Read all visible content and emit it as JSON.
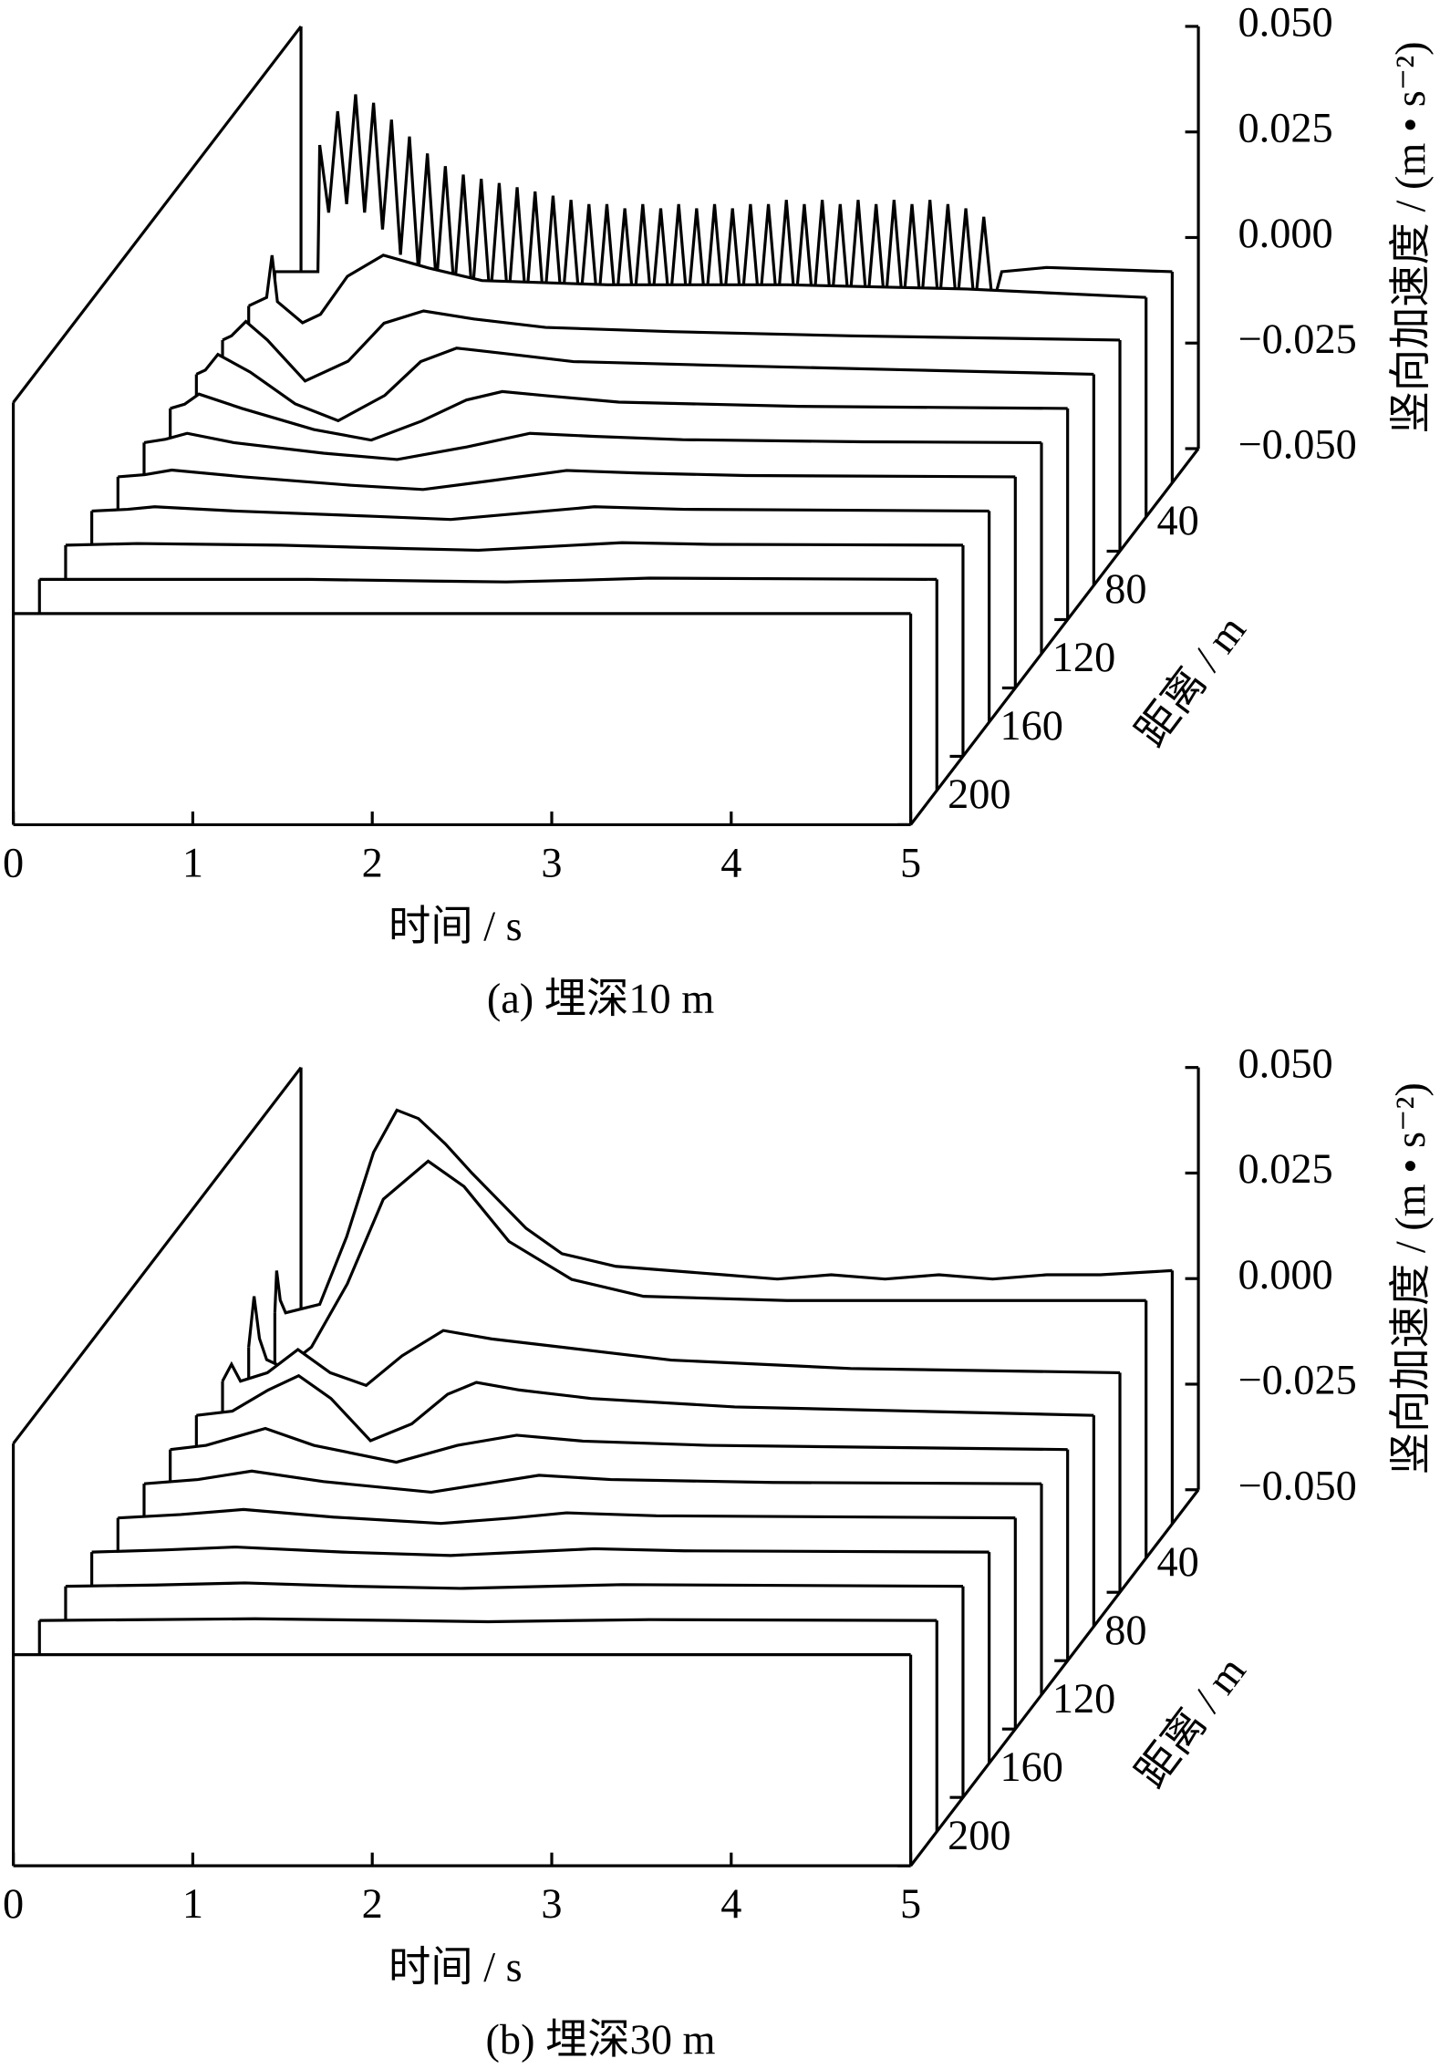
{
  "chart_data": [
    {
      "type": "waterfall",
      "caption": "(a) 埋深10 m",
      "x_label": "时间 / s",
      "y_label": "竖向加速度 / (m • s⁻²)",
      "z_label": "距离 / m",
      "color": "#000000",
      "xlim": [
        0,
        5
      ],
      "xticks": [
        0,
        1,
        2,
        3,
        4,
        5
      ],
      "ylim": [
        -0.05,
        0.05
      ],
      "yticks": [
        {
          "value": -0.05,
          "label": "−0.050"
        },
        {
          "value": -0.025,
          "label": "−0.025"
        },
        {
          "value": 0,
          "label": "0.000"
        },
        {
          "value": 0.025,
          "label": "0.025"
        },
        {
          "value": 0.05,
          "label": "0.050"
        }
      ],
      "zlim": [
        -20,
        200
      ],
      "zticks": [
        40,
        80,
        120,
        160,
        200
      ],
      "series": [
        {
          "z": 0,
          "x": [
            0,
            0.2,
            0.24,
            0.25,
            0.3,
            0.35,
            0.4,
            0.45,
            0.5,
            0.55,
            0.6,
            0.65,
            0.7,
            0.75,
            0.8,
            0.85,
            0.9,
            0.95,
            1.0,
            1.05,
            1.1,
            1.15,
            1.2,
            1.25,
            1.3,
            1.35,
            1.4,
            1.45,
            1.5,
            1.55,
            1.6,
            1.65,
            1.7,
            1.75,
            1.8,
            1.85,
            1.9,
            1.95,
            2.0,
            2.05,
            2.1,
            2.15,
            2.2,
            2.25,
            2.3,
            2.35,
            2.4,
            2.45,
            2.5,
            2.55,
            2.6,
            2.65,
            2.7,
            2.75,
            2.8,
            2.85,
            2.9,
            2.95,
            3.0,
            3.05,
            3.1,
            3.15,
            3.2,
            3.25,
            3.3,
            3.35,
            3.4,
            3.45,
            3.5,
            3.55,
            3.6,
            3.65,
            3.7,
            3.75,
            3.8,
            3.85,
            3.9,
            3.95,
            4.0,
            4.05,
            4.3,
            5.0
          ],
          "values": [
            0,
            0,
            0,
            0.03,
            0.014,
            0.038,
            0.016,
            0.042,
            0.014,
            0.04,
            0.01,
            0.036,
            0.004,
            0.032,
            0,
            0.028,
            -0.003,
            0.025,
            -0.005,
            0.023,
            -0.006,
            0.022,
            -0.007,
            0.021,
            -0.008,
            0.02,
            -0.008,
            0.019,
            -0.009,
            0.018,
            -0.009,
            0.017,
            -0.009,
            0.016,
            -0.009,
            0.016,
            -0.009,
            0.015,
            -0.009,
            0.016,
            -0.009,
            0.015,
            -0.009,
            0.016,
            -0.009,
            0.015,
            -0.009,
            0.016,
            -0.009,
            0.015,
            -0.009,
            0.016,
            -0.009,
            0.016,
            -0.009,
            0.017,
            -0.009,
            0.016,
            -0.009,
            0.017,
            -0.009,
            0.016,
            -0.009,
            0.017,
            -0.009,
            0.016,
            -0.009,
            0.017,
            -0.009,
            0.016,
            -0.009,
            0.017,
            -0.009,
            0.016,
            -0.009,
            0.015,
            -0.009,
            0.013,
            -0.008,
            0,
            0.001,
            0
          ]
        },
        {
          "z": 20,
          "x": [
            0,
            0.1,
            0.13,
            0.16,
            0.3,
            0.4,
            0.55,
            0.75,
            1.0,
            1.3,
            2.0,
            3.0,
            4.0,
            5.0
          ],
          "values": [
            0,
            0.002,
            0.012,
            0.001,
            -0.004,
            -0.002,
            0.007,
            0.012,
            0.009,
            0.006,
            0.005,
            0.005,
            0.004,
            0.002
          ]
        },
        {
          "z": 40,
          "x": [
            0,
            0.05,
            0.13,
            0.25,
            0.46,
            0.7,
            0.9,
            1.12,
            1.4,
            1.8,
            2.5,
            3.5,
            5.0
          ],
          "values": [
            0,
            0.001,
            0.0044,
            0,
            -0.0097,
            -0.005,
            0.004,
            0.0069,
            0.005,
            0.003,
            0.002,
            0.001,
            0
          ]
        },
        {
          "z": 60,
          "x": [
            0,
            0.05,
            0.12,
            0.3,
            0.55,
            0.79,
            1.05,
            1.25,
            1.45,
            1.7,
            2.1,
            3,
            4,
            5
          ],
          "values": [
            0,
            0.001,
            0.0047,
            0.0005,
            -0.007,
            -0.011,
            -0.005,
            0.003,
            0.0062,
            0.005,
            0.003,
            0.002,
            0.001,
            0
          ]
        },
        {
          "z": 80,
          "x": [
            0,
            0.08,
            0.16,
            0.4,
            0.8,
            1.12,
            1.4,
            1.65,
            1.85,
            2.1,
            2.5,
            3.5,
            5
          ],
          "values": [
            0,
            0.001,
            0.0034,
            0,
            -0.005,
            -0.0075,
            -0.003,
            0.002,
            0.004,
            0.003,
            0.0015,
            0.0005,
            0
          ]
        },
        {
          "z": 100,
          "x": [
            0,
            0.12,
            0.24,
            0.5,
            1.0,
            1.41,
            1.8,
            2.15,
            2.5,
            3.0,
            4.0,
            5.0
          ],
          "values": [
            0,
            0.0008,
            0.0022,
            0,
            -0.0025,
            -0.004,
            -0.001,
            0.0022,
            0.0015,
            0.0007,
            0.0002,
            0
          ]
        },
        {
          "z": 120,
          "x": [
            0,
            0.15,
            0.3,
            0.7,
            1.3,
            1.7,
            2.1,
            2.5,
            2.9,
            3.5,
            5
          ],
          "values": [
            0,
            0.0005,
            0.0016,
            0,
            -0.002,
            -0.003,
            -0.0008,
            0.0015,
            0.0009,
            0.0003,
            0
          ]
        },
        {
          "z": 140,
          "x": [
            0,
            0.2,
            0.35,
            0.8,
            1.6,
            2.0,
            2.4,
            2.8,
            3.3,
            5
          ],
          "values": [
            0,
            0.0004,
            0.001,
            0,
            -0.0013,
            -0.002,
            -0.0005,
            0.001,
            0.0004,
            0
          ]
        },
        {
          "z": 160,
          "x": [
            0,
            0.4,
            1.2,
            1.9,
            2.3,
            2.7,
            3.1,
            3.6,
            5
          ],
          "values": [
            0,
            0.0004,
            0,
            -0.0008,
            -0.0012,
            -0.0003,
            0.0006,
            0.0002,
            0
          ]
        },
        {
          "z": 180,
          "x": [
            0,
            1.5,
            2.2,
            2.6,
            3.0,
            3.4,
            5
          ],
          "values": [
            0,
            0,
            -0.0004,
            -0.0006,
            -0.0002,
            0.0003,
            0
          ]
        },
        {
          "z": 200,
          "x": [
            0,
            5
          ],
          "values": [
            0,
            0
          ]
        }
      ]
    },
    {
      "type": "waterfall",
      "caption": "(b) 埋深30 m",
      "x_label": "时间 / s",
      "y_label": "竖向加速度 / (m • s⁻²)",
      "z_label": "距离 / m",
      "color": "#000000",
      "xlim": [
        0,
        5
      ],
      "xticks": [
        0,
        1,
        2,
        3,
        4,
        5
      ],
      "ylim": [
        -0.05,
        0.05
      ],
      "yticks": [
        {
          "value": -0.05,
          "label": "−0.050"
        },
        {
          "value": -0.025,
          "label": "−0.025"
        },
        {
          "value": 0,
          "label": "0.000"
        },
        {
          "value": 0.025,
          "label": "0.025"
        },
        {
          "value": 0.05,
          "label": "0.050"
        }
      ],
      "zlim": [
        -20,
        200
      ],
      "zticks": [
        40,
        80,
        120,
        160,
        200
      ],
      "series": [
        {
          "z": 0,
          "x": [
            0,
            0.01,
            0.03,
            0.06,
            0.25,
            0.4,
            0.55,
            0.68,
            0.8,
            0.95,
            1.1,
            1.4,
            1.6,
            1.9,
            2.2,
            2.5,
            2.8,
            3.1,
            3.4,
            3.7,
            4.0,
            4.3,
            4.6,
            5.0
          ],
          "values": [
            0,
            0.01,
            0.003,
            0,
            0.002,
            0.018,
            0.038,
            0.048,
            0.046,
            0.04,
            0.033,
            0.02,
            0.014,
            0.011,
            0.01,
            0.009,
            0.008,
            0.009,
            0.008,
            0.009,
            0.008,
            0.009,
            0.009,
            0.01
          ]
        },
        {
          "z": 20,
          "x": [
            0,
            0.03,
            0.06,
            0.1,
            0.2,
            0.35,
            0.55,
            0.75,
            1.0,
            1.2,
            1.45,
            1.8,
            2.2,
            3.0,
            4.0,
            5.0
          ],
          "values": [
            0,
            0.012,
            0.002,
            -0.003,
            -0.005,
            0,
            0.015,
            0.035,
            0.044,
            0.038,
            0.025,
            0.016,
            0.012,
            0.011,
            0.011,
            0.011
          ]
        },
        {
          "z": 40,
          "x": [
            0,
            0.05,
            0.1,
            0.25,
            0.42,
            0.6,
            0.8,
            1.0,
            1.23,
            1.5,
            1.9,
            2.5,
            3.5,
            5
          ],
          "values": [
            0,
            0.004,
            0,
            0.002,
            0.0075,
            0.002,
            -0.001,
            0.006,
            0.012,
            0.01,
            0.008,
            0.005,
            0.003,
            0.002
          ]
        },
        {
          "z": 60,
          "x": [
            0,
            0.2,
            0.4,
            0.57,
            0.75,
            0.97,
            1.2,
            1.4,
            1.56,
            1.8,
            2.2,
            3,
            4,
            5
          ],
          "values": [
            0,
            0.001,
            0.006,
            0.0094,
            0.004,
            -0.006,
            -0.002,
            0.005,
            0.0078,
            0.006,
            0.004,
            0.002,
            0.001,
            0
          ]
        },
        {
          "z": 80,
          "x": [
            0,
            0.2,
            0.53,
            0.8,
            1.26,
            1.6,
            1.93,
            2.3,
            3,
            4,
            5
          ],
          "values": [
            0,
            0.001,
            0.005,
            0.001,
            -0.003,
            0.001,
            0.0034,
            0.002,
            0.001,
            0.0005,
            0
          ]
        },
        {
          "z": 100,
          "x": [
            0,
            0.3,
            0.6,
            1.0,
            1.6,
            1.9,
            2.2,
            2.6,
            3.5,
            5
          ],
          "values": [
            0,
            0.001,
            0.003,
            0.0005,
            -0.002,
            0,
            0.002,
            0.001,
            0.0003,
            0
          ]
        },
        {
          "z": 120,
          "x": [
            0,
            0.35,
            0.7,
            1.2,
            1.8,
            2.2,
            2.5,
            3,
            5
          ],
          "values": [
            0,
            0.0008,
            0.002,
            0.0002,
            -0.0013,
            0,
            0.0012,
            0.0005,
            0
          ]
        },
        {
          "z": 140,
          "x": [
            0,
            0.4,
            0.8,
            1.4,
            2.0,
            2.4,
            2.8,
            3.3,
            5
          ],
          "values": [
            0,
            0.0005,
            0.0012,
            0,
            -0.0008,
            0,
            0.0008,
            0.0003,
            0
          ]
        },
        {
          "z": 160,
          "x": [
            0,
            0.5,
            1.0,
            1.6,
            2.2,
            2.7,
            3.1,
            5
          ],
          "values": [
            0,
            0.0003,
            0.0008,
            0,
            -0.0005,
            0,
            0.0004,
            0
          ]
        },
        {
          "z": 180,
          "x": [
            0,
            1.2,
            2.0,
            2.5,
            3.0,
            3.4,
            5
          ],
          "values": [
            0,
            0.0004,
            0,
            -0.0003,
            0,
            0.0002,
            0
          ]
        },
        {
          "z": 200,
          "x": [
            0,
            5
          ],
          "values": [
            0,
            0
          ]
        }
      ]
    }
  ]
}
